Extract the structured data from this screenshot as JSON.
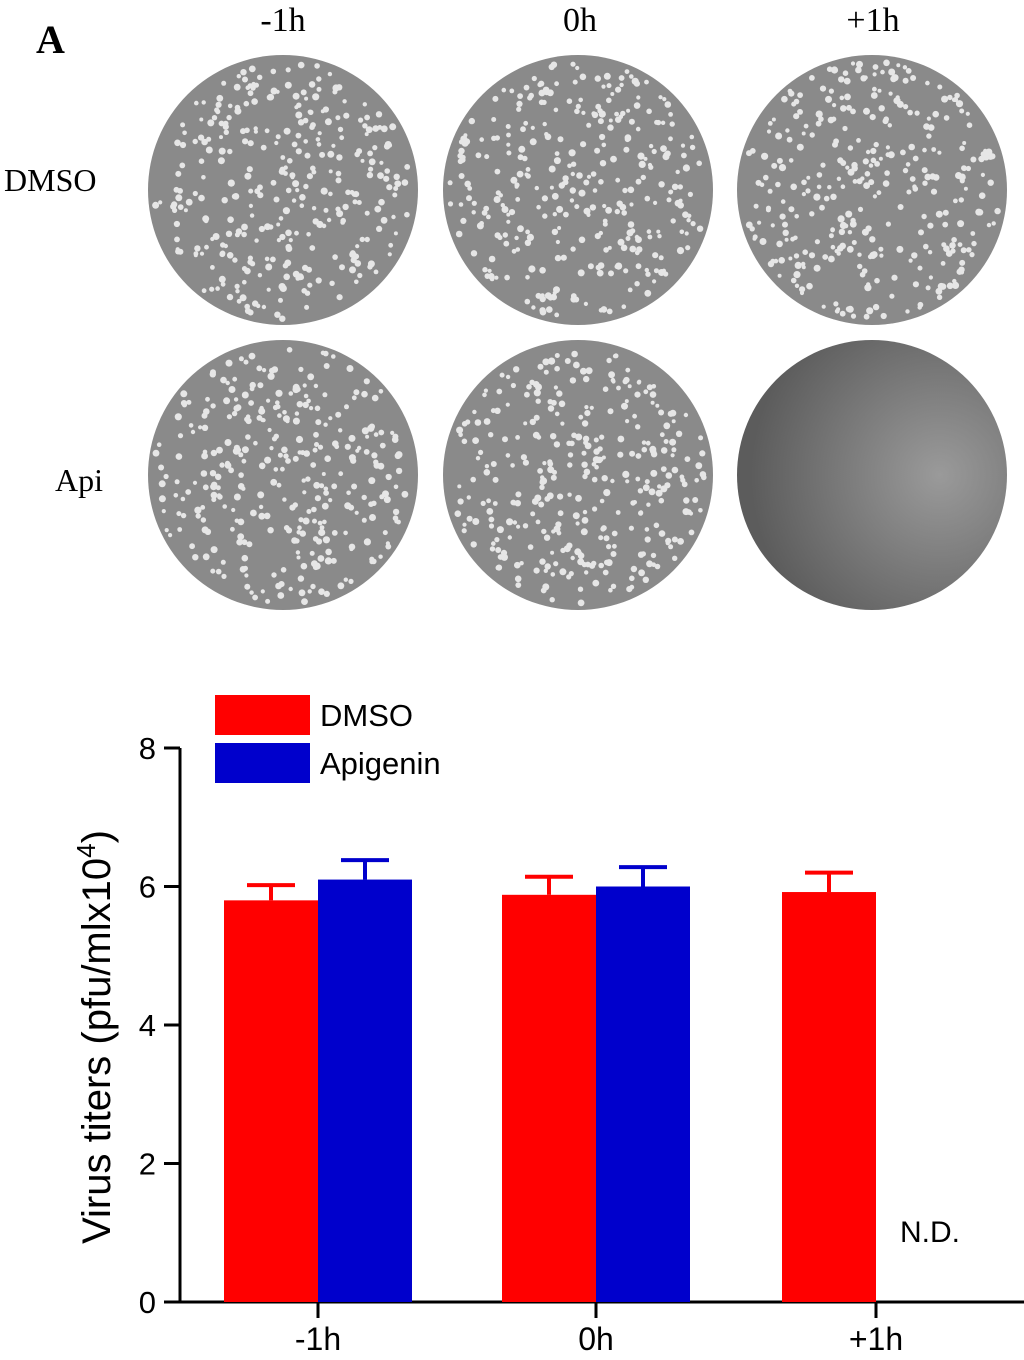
{
  "panel": {
    "label": "A"
  },
  "plates": {
    "columns": [
      "-1h",
      "0h",
      "+1h"
    ],
    "rows": [
      "DMSO",
      "Api"
    ],
    "cleared": [
      [
        false,
        false,
        false
      ],
      [
        false,
        false,
        true
      ]
    ]
  },
  "colors": {
    "dmso": "#ff0000",
    "apigenin": "#0000cc",
    "plate": "#8a8a8a",
    "plaque": "#e6e6e6"
  },
  "chart_data": {
    "type": "bar",
    "categories": [
      "-1h",
      "0h",
      "+1h"
    ],
    "series": [
      {
        "name": "DMSO",
        "color": "#ff0000",
        "values": [
          5.8,
          5.88,
          5.92
        ],
        "errors": [
          0.22,
          0.26,
          0.28
        ]
      },
      {
        "name": "Apigenin",
        "color": "#0000cc",
        "values": [
          6.1,
          6.0,
          null
        ],
        "errors": [
          0.28,
          0.28,
          null
        ]
      }
    ],
    "ylabel": "Virus titers (pfu/mlx10",
    "ylabel_sup": "4",
    "ylabel_close": ")",
    "ylim": [
      0,
      8
    ],
    "yticks": [
      0,
      2,
      4,
      6,
      8
    ],
    "annotation": "N.D.",
    "legend_position": "top-left"
  }
}
